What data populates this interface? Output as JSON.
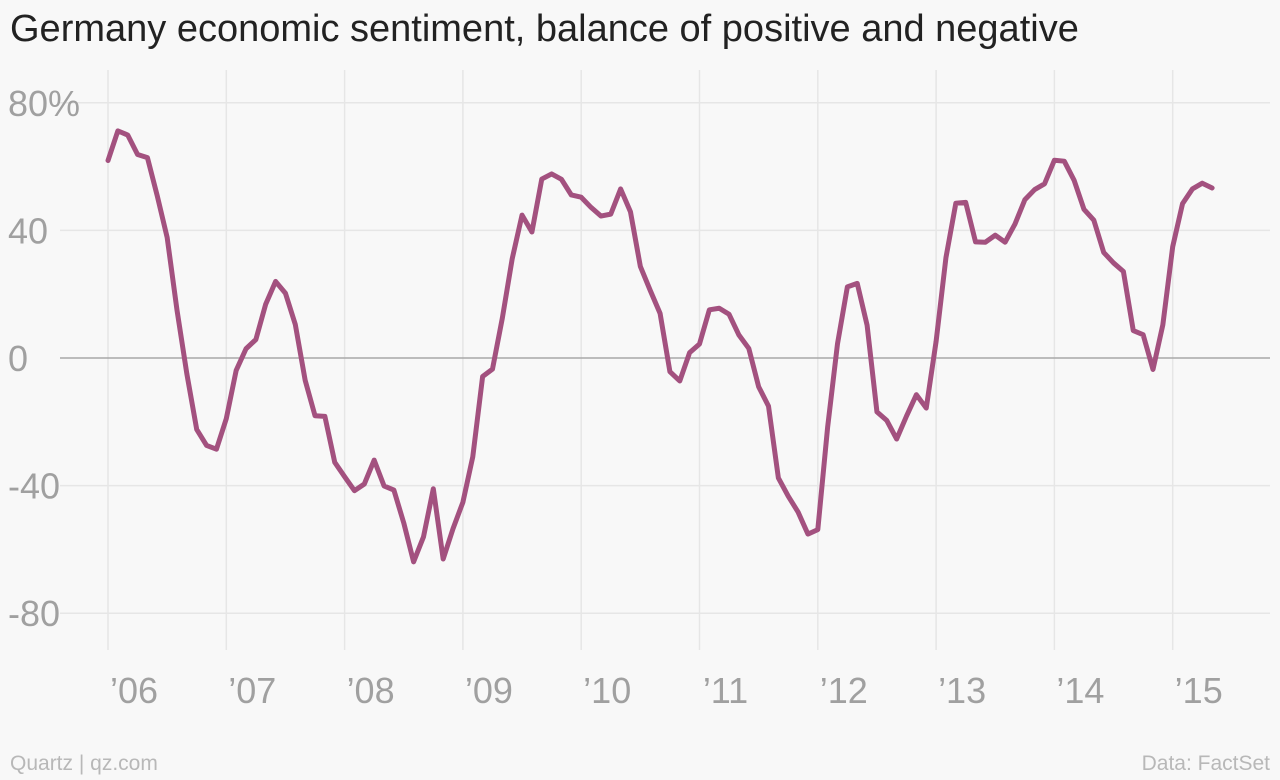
{
  "title": "Germany economic sentiment, balance of positive and negative",
  "footer": {
    "source_left": "Quartz | qz.com",
    "source_right": "Data: FactSet"
  },
  "colors": {
    "line": "#a3517f",
    "grid": "#e6e6e6",
    "zero_line": "#a8a8a8",
    "tick_text": "#a0a0a0",
    "background": "#f8f8f8"
  },
  "chart_data": {
    "type": "line",
    "title": "Germany economic sentiment, balance of positive and negative",
    "xlabel": "",
    "ylabel": "",
    "ylim": [
      -90,
      85
    ],
    "xlim": [
      2005.9,
      2015.8
    ],
    "yticks": [
      80,
      40,
      0,
      -40,
      -80
    ],
    "ytick_labels": [
      "80%",
      "40",
      "0",
      "-40",
      "-80"
    ],
    "xticks": [
      2006,
      2007,
      2008,
      2009,
      2010,
      2011,
      2012,
      2013,
      2014,
      2015
    ],
    "xtick_labels": [
      "’06",
      "’07",
      "’08",
      "’09",
      "’10",
      "’11",
      "’12",
      "’13",
      "’14",
      "’15"
    ],
    "grid": true,
    "series": [
      {
        "x_start": 2006.0,
        "x_step_months": 1,
        "values": [
          61.9,
          71.2,
          69.9,
          63.8,
          62.8,
          50.8,
          37.8,
          15.0,
          -5.0,
          -22.4,
          -27.4,
          -28.6,
          -19.0,
          -3.9,
          2.9,
          5.8,
          16.9,
          24.0,
          20.3,
          10.5,
          -7.0,
          -18.1,
          -18.3,
          -32.7,
          -37.2,
          -41.6,
          -39.5,
          -32.0,
          -40.1,
          -41.4,
          -51.7,
          -63.9,
          -56.1,
          -41.0,
          -63.0,
          -53.5,
          -45.2,
          -31.0,
          -5.8,
          -3.5,
          12.5,
          31.1,
          44.8,
          39.5,
          56.1,
          57.7,
          56.0,
          51.1,
          50.4,
          47.2,
          44.5,
          45.1,
          53.0,
          45.8,
          28.7,
          21.2,
          14.0,
          -4.3,
          -7.2,
          1.7,
          4.4,
          15.1,
          15.6,
          13.7,
          7.2,
          3.0,
          -9.0,
          -15.1,
          -37.6,
          -43.3,
          -48.3,
          -55.2,
          -53.8,
          -21.6,
          4.5,
          22.3,
          23.4,
          10.3,
          -16.9,
          -19.6,
          -25.4,
          -18.2,
          -11.5,
          -15.7,
          5.2,
          31.5,
          48.5,
          48.8,
          36.4,
          36.3,
          38.5,
          36.3,
          42.0,
          49.6,
          52.8,
          54.6,
          62.0,
          61.7,
          55.7,
          46.6,
          43.2,
          33.1,
          29.8,
          27.1,
          8.6,
          7.3,
          -3.6,
          10.4,
          34.9,
          48.4,
          53.0,
          54.8,
          53.3
        ]
      }
    ]
  }
}
